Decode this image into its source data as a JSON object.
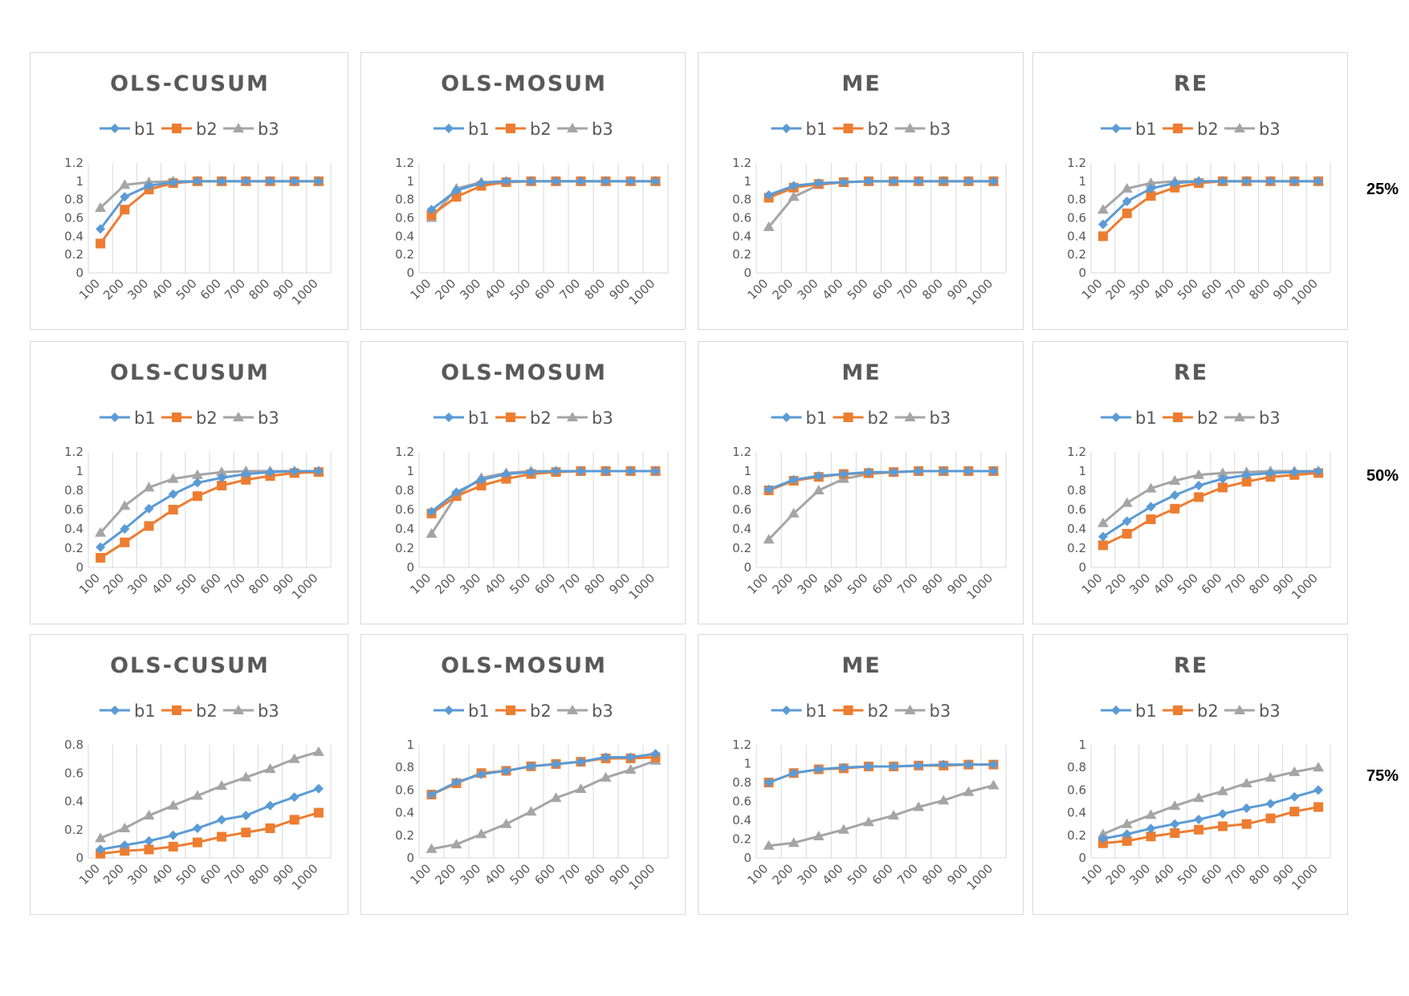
{
  "row_labels": [
    "25%",
    "50%",
    "75%"
  ],
  "chart_data": [
    {
      "type": "line",
      "title": "OLS-CUSUM",
      "categories": [
        "100",
        "200",
        "300",
        "400",
        "500",
        "600",
        "700",
        "800",
        "900",
        "1000"
      ],
      "ylim": [
        0,
        1.2
      ],
      "yticks": [
        "0",
        "0.2",
        "0.4",
        "0.6",
        "0.8",
        "1",
        "1.2"
      ],
      "grid": true,
      "legend": "top",
      "series": [
        {
          "name": "b1",
          "values": [
            0.48,
            0.83,
            0.95,
            0.99,
            1,
            1,
            1,
            1,
            1,
            1
          ]
        },
        {
          "name": "b2",
          "values": [
            0.32,
            0.69,
            0.91,
            0.98,
            1,
            1,
            1,
            1,
            1,
            1
          ]
        },
        {
          "name": "b3",
          "values": [
            0.71,
            0.96,
            0.99,
            1,
            1,
            1,
            1,
            1,
            1,
            1
          ]
        }
      ]
    },
    {
      "type": "line",
      "title": "OLS-MOSUM",
      "categories": [
        "100",
        "200",
        "300",
        "400",
        "500",
        "600",
        "700",
        "800",
        "900",
        "1000"
      ],
      "ylim": [
        0,
        1.2
      ],
      "yticks": [
        "0",
        "0.2",
        "0.4",
        "0.6",
        "0.8",
        "1",
        "1.2"
      ],
      "grid": true,
      "legend": "top",
      "series": [
        {
          "name": "b1",
          "values": [
            0.69,
            0.9,
            0.98,
            1,
            1,
            1,
            1,
            1,
            1,
            1
          ]
        },
        {
          "name": "b2",
          "values": [
            0.63,
            0.83,
            0.95,
            0.99,
            1,
            1,
            1,
            1,
            1,
            1
          ]
        },
        {
          "name": "b3",
          "values": [
            0.6,
            0.92,
            0.99,
            1,
            1,
            1,
            1,
            1,
            1,
            1
          ]
        }
      ]
    },
    {
      "type": "line",
      "title": "ME",
      "categories": [
        "100",
        "200",
        "300",
        "400",
        "500",
        "600",
        "700",
        "800",
        "900",
        "1000"
      ],
      "ylim": [
        0,
        1.2
      ],
      "yticks": [
        "0",
        "0.2",
        "0.4",
        "0.6",
        "0.8",
        "1",
        "1.2"
      ],
      "grid": true,
      "legend": "top",
      "series": [
        {
          "name": "b1",
          "values": [
            0.85,
            0.95,
            0.98,
            0.99,
            1,
            1,
            1,
            1,
            1,
            1
          ]
        },
        {
          "name": "b2",
          "values": [
            0.82,
            0.93,
            0.97,
            0.99,
            1,
            1,
            1,
            1,
            1,
            1
          ]
        },
        {
          "name": "b3",
          "values": [
            0.5,
            0.83,
            0.96,
            0.99,
            1,
            1,
            1,
            1,
            1,
            1
          ]
        }
      ]
    },
    {
      "type": "line",
      "title": "RE",
      "categories": [
        "100",
        "200",
        "300",
        "400",
        "500",
        "600",
        "700",
        "800",
        "900",
        "1000"
      ],
      "ylim": [
        0,
        1.2
      ],
      "yticks": [
        "0",
        "0.2",
        "0.4",
        "0.6",
        "0.8",
        "1",
        "1.2"
      ],
      "grid": true,
      "legend": "top",
      "series": [
        {
          "name": "b1",
          "values": [
            0.53,
            0.78,
            0.92,
            0.98,
            1,
            1,
            1,
            1,
            1,
            1
          ]
        },
        {
          "name": "b2",
          "values": [
            0.4,
            0.65,
            0.84,
            0.93,
            0.98,
            1,
            1,
            1,
            1,
            1
          ]
        },
        {
          "name": "b3",
          "values": [
            0.69,
            0.92,
            0.98,
            1,
            1,
            1,
            1,
            1,
            1,
            1
          ]
        }
      ]
    },
    {
      "type": "line",
      "title": "OLS-CUSUM",
      "categories": [
        "100",
        "200",
        "300",
        "400",
        "500",
        "600",
        "700",
        "800",
        "900",
        "1000"
      ],
      "ylim": [
        0,
        1.2
      ],
      "yticks": [
        "0",
        "0.2",
        "0.4",
        "0.6",
        "0.8",
        "1",
        "1.2"
      ],
      "grid": true,
      "legend": "top",
      "series": [
        {
          "name": "b1",
          "values": [
            0.21,
            0.4,
            0.61,
            0.76,
            0.88,
            0.93,
            0.97,
            0.99,
            1,
            1
          ]
        },
        {
          "name": "b2",
          "values": [
            0.1,
            0.26,
            0.43,
            0.6,
            0.74,
            0.85,
            0.91,
            0.95,
            0.98,
            0.99
          ]
        },
        {
          "name": "b3",
          "values": [
            0.36,
            0.64,
            0.83,
            0.92,
            0.96,
            0.99,
            1,
            1,
            1,
            1
          ]
        }
      ]
    },
    {
      "type": "line",
      "title": "OLS-MOSUM",
      "categories": [
        "100",
        "200",
        "300",
        "400",
        "500",
        "600",
        "700",
        "800",
        "900",
        "1000"
      ],
      "ylim": [
        0,
        1.2
      ],
      "yticks": [
        "0",
        "0.2",
        "0.4",
        "0.6",
        "0.8",
        "1",
        "1.2"
      ],
      "grid": true,
      "legend": "top",
      "series": [
        {
          "name": "b1",
          "values": [
            0.58,
            0.78,
            0.91,
            0.97,
            0.99,
            1,
            1,
            1,
            1,
            1
          ]
        },
        {
          "name": "b2",
          "values": [
            0.56,
            0.74,
            0.85,
            0.92,
            0.97,
            0.99,
            1,
            1,
            1,
            1
          ]
        },
        {
          "name": "b3",
          "values": [
            0.35,
            0.75,
            0.93,
            0.98,
            1,
            1,
            1,
            1,
            1,
            1
          ]
        }
      ]
    },
    {
      "type": "line",
      "title": "ME",
      "categories": [
        "100",
        "200",
        "300",
        "400",
        "500",
        "600",
        "700",
        "800",
        "900",
        "1000"
      ],
      "ylim": [
        0,
        1.2
      ],
      "yticks": [
        "0",
        "0.2",
        "0.4",
        "0.6",
        "0.8",
        "1",
        "1.2"
      ],
      "grid": true,
      "legend": "top",
      "series": [
        {
          "name": "b1",
          "values": [
            0.81,
            0.91,
            0.95,
            0.97,
            0.99,
            0.99,
            1,
            1,
            1,
            1
          ]
        },
        {
          "name": "b2",
          "values": [
            0.8,
            0.9,
            0.94,
            0.97,
            0.98,
            0.99,
            1,
            1,
            1,
            1
          ]
        },
        {
          "name": "b3",
          "values": [
            0.29,
            0.56,
            0.8,
            0.92,
            0.97,
            0.99,
            1,
            1,
            1,
            1
          ]
        }
      ]
    },
    {
      "type": "line",
      "title": "RE",
      "categories": [
        "100",
        "200",
        "300",
        "400",
        "500",
        "600",
        "700",
        "800",
        "900",
        "1000"
      ],
      "ylim": [
        0,
        1.2
      ],
      "yticks": [
        "0",
        "0.2",
        "0.4",
        "0.6",
        "0.8",
        "1",
        "1.2"
      ],
      "grid": true,
      "legend": "top",
      "series": [
        {
          "name": "b1",
          "values": [
            0.32,
            0.48,
            0.63,
            0.75,
            0.85,
            0.92,
            0.96,
            0.98,
            0.99,
            1
          ]
        },
        {
          "name": "b2",
          "values": [
            0.23,
            0.35,
            0.5,
            0.61,
            0.73,
            0.83,
            0.89,
            0.94,
            0.96,
            0.98
          ]
        },
        {
          "name": "b3",
          "values": [
            0.46,
            0.67,
            0.82,
            0.9,
            0.96,
            0.98,
            0.99,
            1,
            1,
            1
          ]
        }
      ]
    },
    {
      "type": "line",
      "title": "OLS-CUSUM",
      "categories": [
        "100",
        "200",
        "300",
        "400",
        "500",
        "600",
        "700",
        "800",
        "900",
        "1000"
      ],
      "ylim": [
        0,
        0.8
      ],
      "yticks": [
        "0",
        "0.2",
        "0.4",
        "0.6",
        "0.8"
      ],
      "grid": true,
      "legend": "top",
      "series": [
        {
          "name": "b1",
          "values": [
            0.06,
            0.09,
            0.12,
            0.16,
            0.21,
            0.27,
            0.3,
            0.37,
            0.43,
            0.49
          ]
        },
        {
          "name": "b2",
          "values": [
            0.03,
            0.05,
            0.06,
            0.08,
            0.11,
            0.15,
            0.18,
            0.21,
            0.27,
            0.32
          ]
        },
        {
          "name": "b3",
          "values": [
            0.14,
            0.21,
            0.3,
            0.37,
            0.44,
            0.51,
            0.57,
            0.63,
            0.7,
            0.75
          ]
        }
      ]
    },
    {
      "type": "line",
      "title": "OLS-MOSUM",
      "categories": [
        "100",
        "200",
        "300",
        "400",
        "500",
        "600",
        "700",
        "800",
        "900",
        "1000"
      ],
      "ylim": [
        0,
        1
      ],
      "yticks": [
        "0",
        "0.2",
        "0.4",
        "0.6",
        "0.8",
        "1"
      ],
      "grid": true,
      "legend": "top",
      "series": [
        {
          "name": "b1",
          "values": [
            0.56,
            0.67,
            0.74,
            0.77,
            0.81,
            0.83,
            0.85,
            0.89,
            0.89,
            0.92
          ]
        },
        {
          "name": "b2",
          "values": [
            0.56,
            0.66,
            0.75,
            0.77,
            0.81,
            0.83,
            0.85,
            0.88,
            0.88,
            0.89
          ]
        },
        {
          "name": "b3",
          "values": [
            0.08,
            0.12,
            0.21,
            0.3,
            0.41,
            0.53,
            0.61,
            0.71,
            0.78,
            0.86
          ]
        }
      ]
    },
    {
      "type": "line",
      "title": "ME",
      "categories": [
        "100",
        "200",
        "300",
        "400",
        "500",
        "600",
        "700",
        "800",
        "900",
        "1000"
      ],
      "ylim": [
        0,
        1.2
      ],
      "yticks": [
        "0",
        "0.2",
        "0.4",
        "0.6",
        "0.8",
        "1",
        "1.2"
      ],
      "grid": true,
      "legend": "top",
      "series": [
        {
          "name": "b1",
          "values": [
            0.8,
            0.9,
            0.94,
            0.96,
            0.97,
            0.97,
            0.98,
            0.99,
            0.99,
            0.99
          ]
        },
        {
          "name": "b2",
          "values": [
            0.8,
            0.9,
            0.94,
            0.95,
            0.97,
            0.97,
            0.98,
            0.98,
            0.99,
            0.99
          ]
        },
        {
          "name": "b3",
          "values": [
            0.13,
            0.16,
            0.23,
            0.3,
            0.38,
            0.45,
            0.54,
            0.61,
            0.7,
            0.77
          ]
        }
      ]
    },
    {
      "type": "line",
      "title": "RE",
      "categories": [
        "100",
        "200",
        "300",
        "400",
        "500",
        "600",
        "700",
        "800",
        "900",
        "1000"
      ],
      "ylim": [
        0,
        1
      ],
      "yticks": [
        "0",
        "0.2",
        "0.4",
        "0.6",
        "0.8",
        "1"
      ],
      "grid": true,
      "legend": "top",
      "series": [
        {
          "name": "b1",
          "values": [
            0.17,
            0.21,
            0.26,
            0.3,
            0.34,
            0.39,
            0.44,
            0.48,
            0.54,
            0.6
          ]
        },
        {
          "name": "b2",
          "values": [
            0.13,
            0.15,
            0.19,
            0.22,
            0.25,
            0.28,
            0.3,
            0.35,
            0.41,
            0.45
          ]
        },
        {
          "name": "b3",
          "values": [
            0.21,
            0.3,
            0.38,
            0.46,
            0.53,
            0.59,
            0.66,
            0.71,
            0.76,
            0.8
          ]
        }
      ]
    }
  ],
  "colors": {
    "b1": "#5b9bd5",
    "b2": "#ed7d31",
    "b3": "#a5a5a5",
    "grid": "#d9d9d9",
    "text": "#595959"
  },
  "markers": {
    "b1": "diamond",
    "b2": "square",
    "b3": "triangle"
  }
}
